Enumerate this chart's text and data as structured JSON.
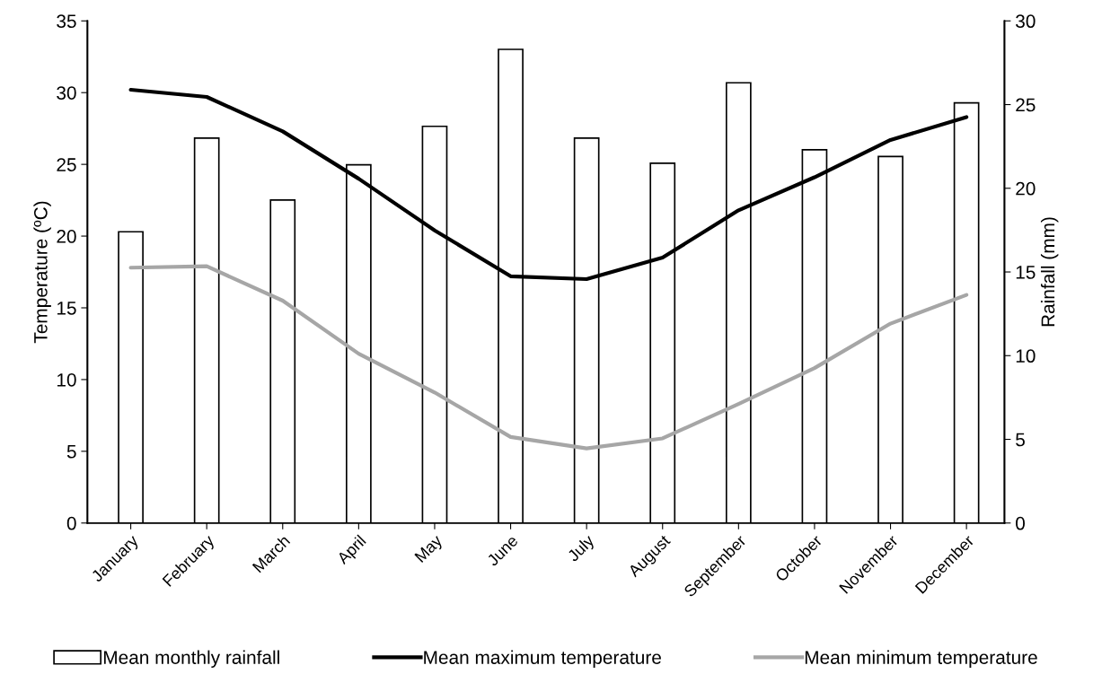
{
  "chart_data": {
    "type": "line",
    "ylabel": "Temperature (ºC)",
    "y2label": "Rainfall (mm)",
    "categories": [
      "January",
      "February",
      "March",
      "April",
      "May",
      "June",
      "July",
      "August",
      "September",
      "October",
      "November",
      "December"
    ],
    "series": [
      {
        "name": "Mean monthly rainfall",
        "type": "bar",
        "axis": "y2",
        "color": "#ffffff",
        "values": [
          17.4,
          23.0,
          19.3,
          21.4,
          23.7,
          28.3,
          23.0,
          21.5,
          26.3,
          22.3,
          21.9,
          25.1
        ]
      },
      {
        "name": "Mean maximum temperature",
        "color": "#000000",
        "values": [
          30.2,
          29.7,
          27.3,
          24.0,
          20.4,
          17.2,
          17.0,
          18.5,
          21.8,
          24.1,
          26.7,
          28.3
        ]
      },
      {
        "name": "Mean minimum temperature",
        "color": "#a6a6a6",
        "values": [
          17.8,
          17.9,
          15.5,
          11.8,
          9.1,
          6.0,
          5.2,
          5.9,
          8.3,
          10.8,
          13.9,
          15.9
        ]
      }
    ],
    "ylim": [
      0,
      35
    ],
    "yticks": [
      0,
      5,
      10,
      15,
      20,
      25,
      30,
      35
    ],
    "y2lim": [
      0,
      30
    ],
    "y2ticks": [
      0,
      5,
      10,
      15,
      20,
      25,
      30
    ],
    "legend": "bottom",
    "grid": false,
    "marker": "none",
    "line_style": "solid"
  }
}
